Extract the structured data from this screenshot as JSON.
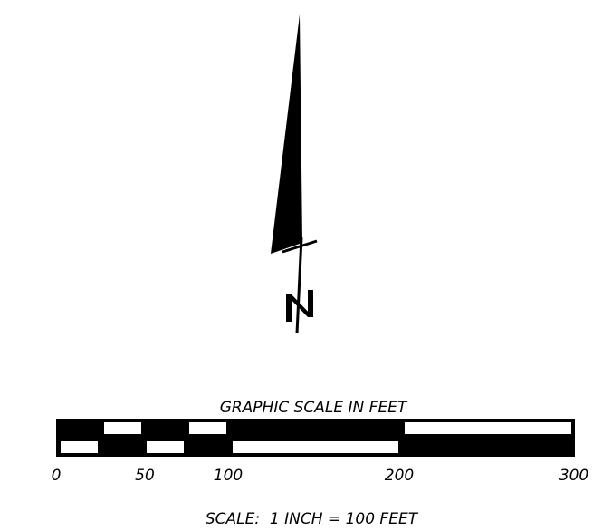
{
  "north_arrow": {
    "label": "N"
  },
  "graphic_scale": {
    "title": "GRAPHIC SCALE IN FEET",
    "units": "feet",
    "ticks": [
      {
        "value": 0,
        "label": "0"
      },
      {
        "value": 50,
        "label": "50"
      },
      {
        "value": 100,
        "label": "100"
      },
      {
        "value": 200,
        "label": "200"
      },
      {
        "value": 300,
        "label": "300"
      }
    ],
    "pattern": "alternating black and white segments, 25-ft subdivisions from 0 to 100, then 100-ft segments to 300"
  },
  "scale_statement": "SCALE:  1 INCH = 100 FEET",
  "colors": {
    "ink": "#000000",
    "paper": "#ffffff"
  }
}
